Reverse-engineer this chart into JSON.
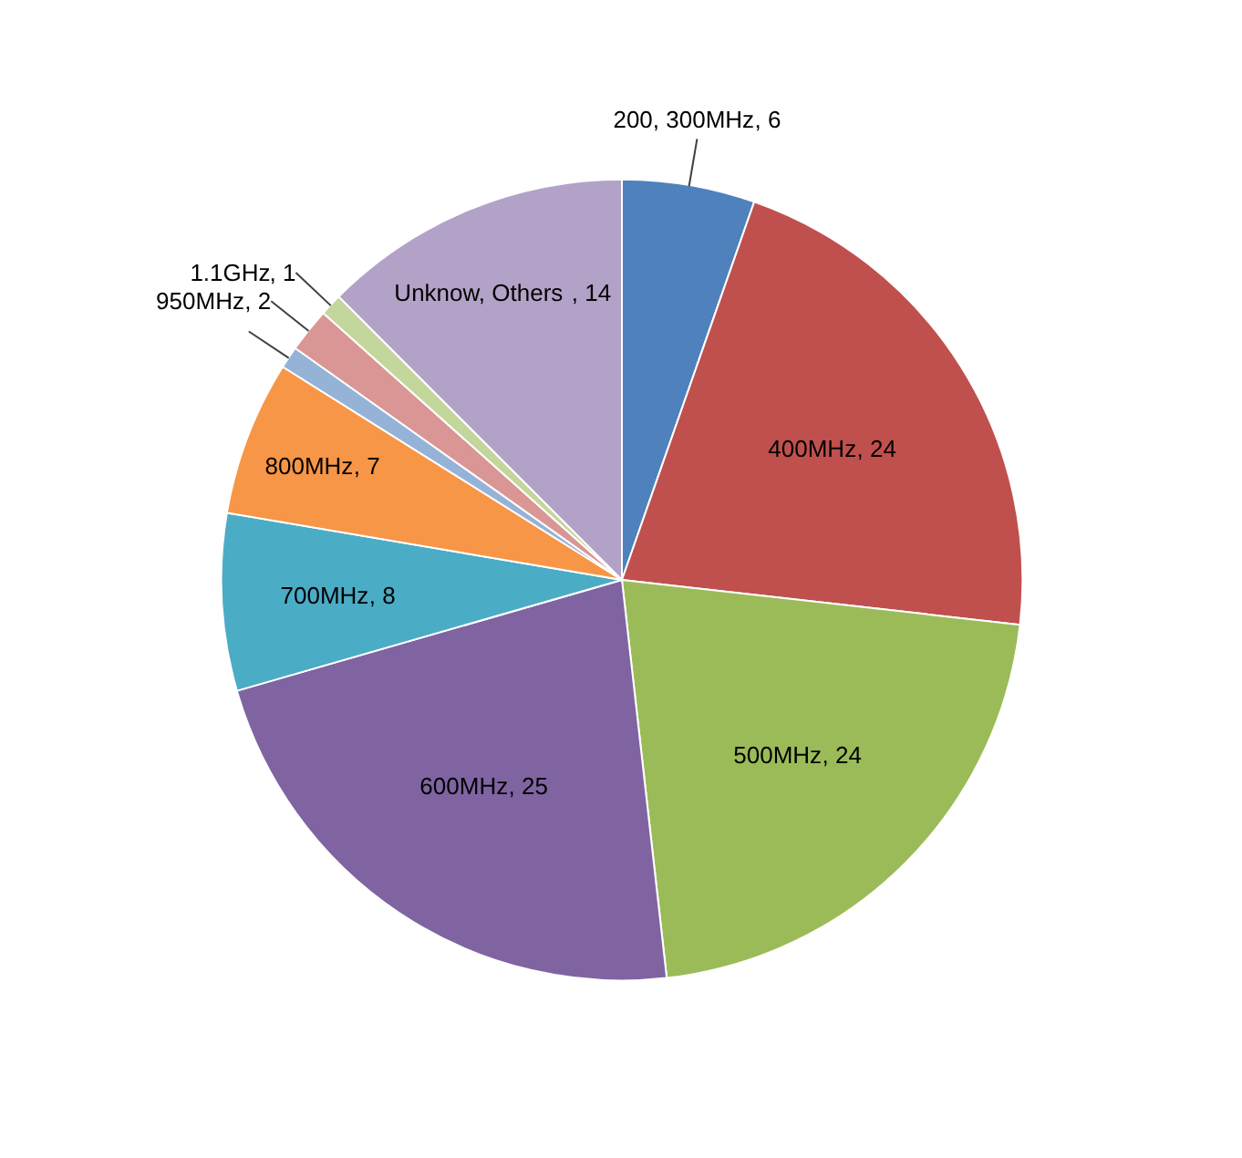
{
  "chart_data": {
    "type": "pie",
    "categories": [
      "200, 300MHz",
      "400MHz",
      "500MHz",
      "600MHz",
      "700MHz",
      "800MHz",
      null,
      "950MHz",
      "1.1GHz",
      "Unknow, Others"
    ],
    "values": [
      6,
      24,
      24,
      25,
      8,
      7,
      1,
      2,
      1,
      14
    ],
    "value_labels": [
      ", 6",
      ", 24",
      ", 24",
      ", 25",
      ", 8",
      ", 7",
      null,
      ", 2",
      ", 1",
      ", 14"
    ],
    "colors": [
      "#4f81bd",
      "#c0504d",
      "#9bbb59",
      "#8064a2",
      "#4bacc6",
      "#f79646",
      "#95b3d7",
      "#d99694",
      "#c3d69b",
      "#b3a2c7"
    ]
  }
}
